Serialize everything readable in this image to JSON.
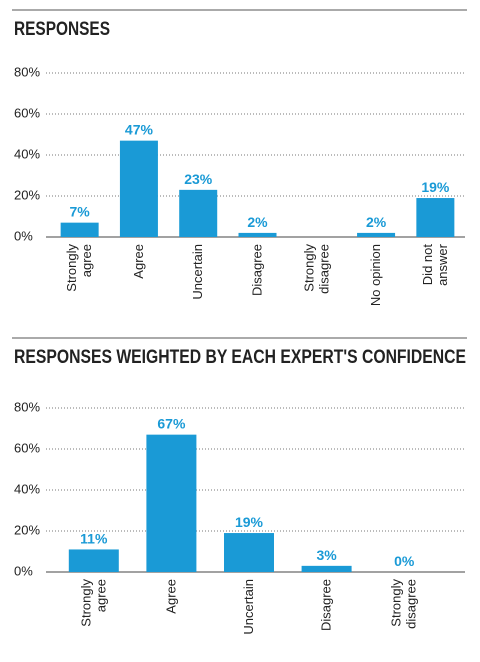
{
  "chart_data": [
    {
      "type": "bar",
      "title": "RESPONSES",
      "categories": [
        "Strongly agree",
        "Agree",
        "Uncertain",
        "Disagree",
        "Strongly disagree",
        "No opinion",
        "Did not answer"
      ],
      "values": [
        7,
        47,
        23,
        2,
        0,
        2,
        19
      ],
      "value_labels": [
        "7%",
        "47%",
        "23%",
        "2%",
        null,
        "2%",
        "19%"
      ],
      "color": "#1a9ad6",
      "ylim": [
        0,
        80
      ],
      "yticks": [
        {
          "value": 0,
          "label": "0%"
        },
        {
          "value": 20,
          "label": "20%"
        },
        {
          "value": 40,
          "label": "40%"
        },
        {
          "value": 60,
          "label": "60%"
        },
        {
          "value": 80,
          "label": "80%"
        }
      ],
      "grid": true
    },
    {
      "type": "bar",
      "title": "RESPONSES WEIGHTED BY EACH EXPERT'S CONFIDENCE",
      "categories": [
        "Strongly agree",
        "Agree",
        "Uncertain",
        "Disagree",
        "Strongly disagree"
      ],
      "values": [
        11,
        67,
        19,
        3,
        0
      ],
      "value_labels": [
        "11%",
        "67%",
        "19%",
        "3%",
        "0%"
      ],
      "color": "#1a9ad6",
      "ylim": [
        0,
        80
      ],
      "yticks": [
        {
          "value": 0,
          "label": "0%"
        },
        {
          "value": 20,
          "label": "20%"
        },
        {
          "value": 40,
          "label": "40%"
        },
        {
          "value": 60,
          "label": "60%"
        },
        {
          "value": 80,
          "label": "80%"
        }
      ],
      "grid": true
    }
  ]
}
